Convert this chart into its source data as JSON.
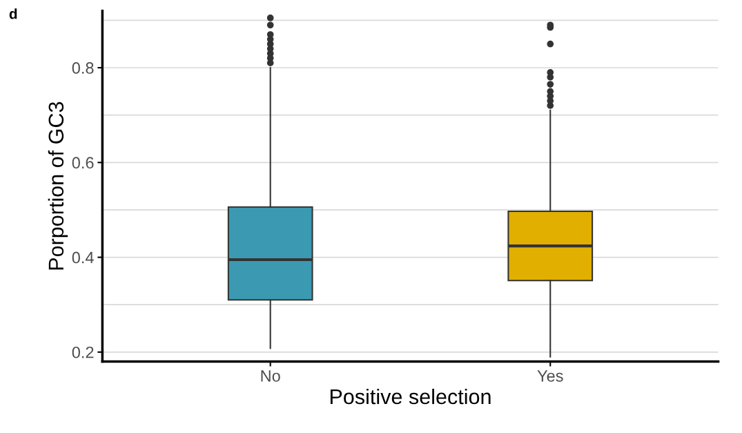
{
  "chart_data": {
    "type": "box",
    "xlabel": "Positive selection",
    "ylabel": "Porportion of GC3",
    "annotations": [
      "d"
    ],
    "categories": [
      "No",
      "Yes"
    ],
    "colors": [
      "#3b9ab2",
      "#e1af00"
    ],
    "boxes": [
      {
        "low": 0.208,
        "q1": 0.31,
        "median": 0.395,
        "q3": 0.506,
        "high": 0.8,
        "outliers": [
          0.81,
          0.82,
          0.83,
          0.84,
          0.85,
          0.86,
          0.87,
          0.89,
          0.905
        ]
      },
      {
        "low": 0.19,
        "q1": 0.351,
        "median": 0.424,
        "q3": 0.497,
        "high": 0.71,
        "outliers": [
          0.72,
          0.73,
          0.74,
          0.75,
          0.765,
          0.78,
          0.79,
          0.85,
          0.885,
          0.89
        ]
      }
    ],
    "ylim": [
      0.18,
      0.92
    ],
    "yticks": [
      0.2,
      {
        "value": 0.3,
        "label": null
      },
      0.4,
      {
        "value": 0.5,
        "label": null
      },
      0.6,
      {
        "value": 0.7,
        "label": null
      },
      0.8,
      {
        "value": 0.9,
        "label": null
      }
    ],
    "grid": "y"
  }
}
